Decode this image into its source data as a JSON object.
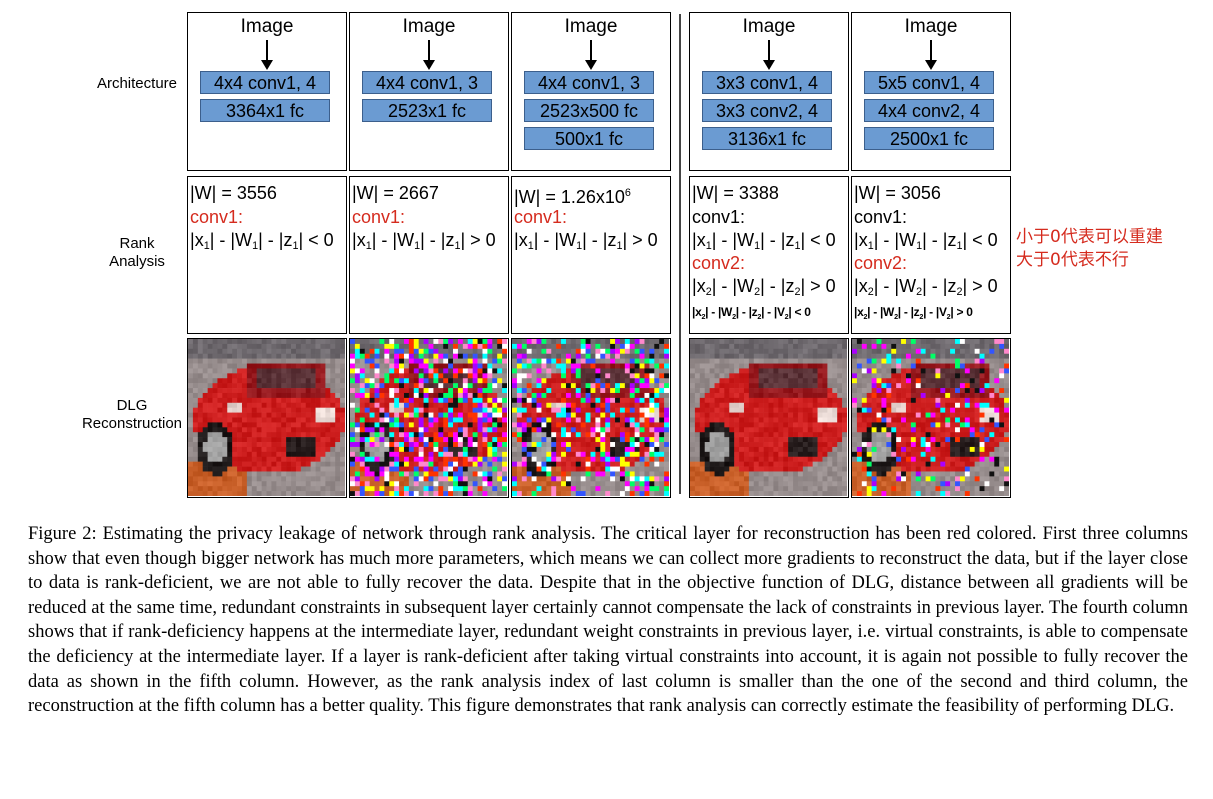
{
  "row_labels": {
    "architecture": "Architecture",
    "rank_line1": "Rank",
    "rank_line2": "Analysis",
    "dlg_line1": "DLG",
    "dlg_line2": "Reconstruction"
  },
  "image_label": "Image",
  "columns": [
    {
      "layers": [
        "4x4 conv1, 4",
        "3364x1 fc"
      ],
      "w_count": "|W| = 3556",
      "lines": [
        {
          "text": "conv1:",
          "red": true
        },
        {
          "text": "|x1| - |W1| - |z1| < 0",
          "red": false
        }
      ]
    },
    {
      "layers": [
        "4x4 conv1, 3",
        "2523x1 fc"
      ],
      "w_count": "|W| = 2667",
      "lines": [
        {
          "text": "conv1:",
          "red": true
        },
        {
          "text": "|x1| - |W1| - |z1| > 0",
          "red": false
        }
      ]
    },
    {
      "layers": [
        "4x4 conv1, 3",
        "2523x500 fc",
        "500x1 fc"
      ],
      "w_count": "|W| = 1.26x10",
      "w_exp": "6",
      "lines": [
        {
          "text": "conv1:",
          "red": true
        },
        {
          "text": "|x1| - |W1| - |z1| > 0",
          "red": false
        }
      ]
    },
    {
      "layers": [
        "3x3 conv1, 4",
        "3x3 conv2, 4",
        "3136x1 fc"
      ],
      "w_count": "|W| = 3388",
      "lines": [
        {
          "text": "conv1:",
          "red": false
        },
        {
          "text": "|x1| - |W1| - |z1| < 0",
          "red": false
        },
        {
          "text": "conv2:",
          "red": true
        },
        {
          "text": "|x2| - |W2| - |z2| > 0",
          "red": false
        },
        {
          "text": "|x2| - |W2| - |z2| - |V2| < 0",
          "red": false,
          "small": true
        }
      ]
    },
    {
      "layers": [
        "5x5 conv1, 4",
        "4x4 conv2, 4",
        "2500x1 fc"
      ],
      "w_count": "|W| = 3056",
      "lines": [
        {
          "text": "conv1:",
          "red": false
        },
        {
          "text": "|x1| - |W1| - |z1| < 0",
          "red": false
        },
        {
          "text": "conv2:",
          "red": true
        },
        {
          "text": "|x2| - |W2| - |z2| > 0",
          "red": false
        },
        {
          "text": "|x2| - |W2| - |z2| - |V2| > 0",
          "red": false,
          "small": true
        }
      ]
    }
  ],
  "reconstruction_noise": [
    0.0,
    0.55,
    0.42,
    0.0,
    0.22
  ],
  "annotation": {
    "line1": "小于0代表可以重建",
    "line2": "大于0代表不行"
  },
  "caption": "Figure 2: Estimating the privacy leakage of network through rank analysis. The critical layer for reconstruction has been red colored. First three columns show that even though bigger network has much more parameters, which means we can collect more gradients to reconstruct the data, but if the layer close to data is rank-deficient, we are not able to fully recover the data. Despite that in the objective function of DLG, distance between all gradients will be reduced at the same time, redundant constraints in subsequent layer certainly cannot compensate the lack of constraints in previous layer. The fourth column shows that if rank-deficiency happens at the intermediate layer, redundant weight constraints in previous layer, i.e. virtual constraints, is able to compensate the deficiency at the intermediate layer. If a layer is rank-deficient after taking virtual constraints into account, it is again not possible to fully recover the data as shown in the fifth column. However, as the rank analysis index of last column is smaller than the one of the second and third column, the reconstruction at the fifth column has a better quality. This figure demonstrates that rank analysis can correctly estimate the feasibility of performing DLG.",
  "colors": {
    "layer_box": "#6b9bd2",
    "critical_red": "#d52b1e"
  }
}
